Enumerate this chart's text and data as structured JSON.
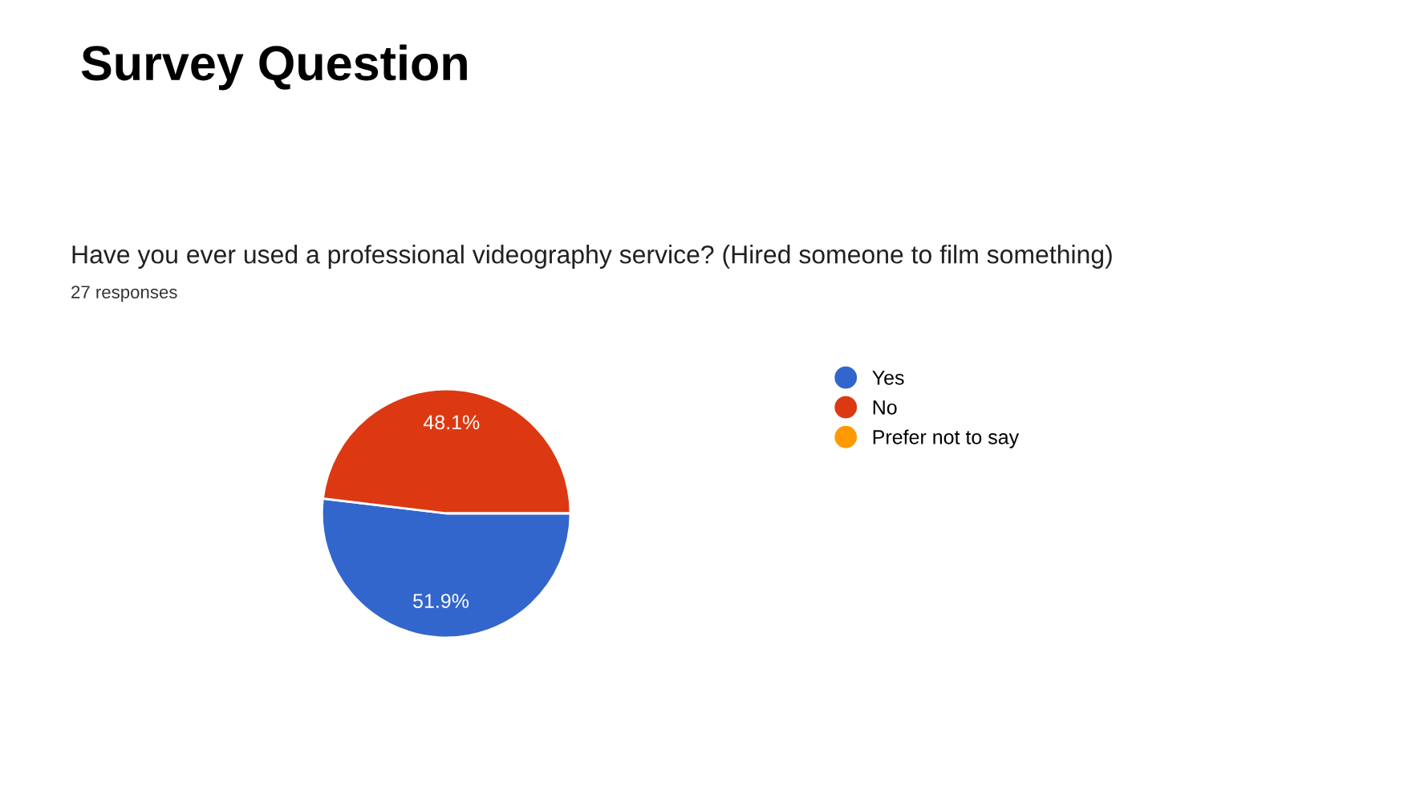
{
  "chart_data": {
    "type": "pie",
    "title": "Survey Question",
    "subtitle": "Have you ever used a professional videography service? (Hired someone to film something)",
    "annotations": [
      "27 responses"
    ],
    "categories": [
      "Yes",
      "No",
      "Prefer not to say"
    ],
    "values": [
      51.9,
      48.1,
      0
    ],
    "colors": [
      "#3366cc",
      "#dc3912",
      "#ff9900"
    ],
    "value_labels": [
      "51.9%",
      "48.1%",
      null
    ],
    "legend": "right"
  }
}
